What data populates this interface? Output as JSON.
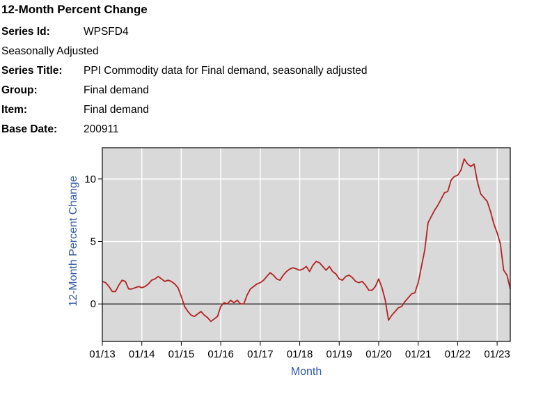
{
  "header": {
    "title": "12-Month Percent Change",
    "series_id_label": "Series Id:",
    "series_id_value": "WPSFD4",
    "seasonal": "Seasonally Adjusted",
    "series_title_label": "Series Title:",
    "series_title_value": "PPI Commodity data for Final demand, seasonally adjusted",
    "group_label": "Group:",
    "group_value": "Final demand",
    "item_label": "Item:",
    "item_value": "Final demand",
    "base_date_label": "Base Date:",
    "base_date_value": "200911"
  },
  "colors": {
    "line": "#b22222",
    "plot_bg": "#d9d9d9",
    "axis_title": "#2e5aa8",
    "grid": "#ffffff"
  },
  "chart_data": {
    "type": "line",
    "xlabel": "Month",
    "ylabel": "12-Month Percent Change",
    "x_tick_labels": [
      "01/13",
      "01/14",
      "01/15",
      "01/16",
      "01/17",
      "01/18",
      "01/19",
      "01/20",
      "01/21",
      "01/22",
      "01/23"
    ],
    "y_tick_labels": [
      "0",
      "5",
      "10"
    ],
    "ylim": [
      -3,
      12.5
    ],
    "xlim": [
      "2013-01",
      "2023-05"
    ],
    "grid": true,
    "series": [
      {
        "points": [
          [
            "2013-01",
            1.8
          ],
          [
            "2013-02",
            1.7
          ],
          [
            "2013-03",
            1.4
          ],
          [
            "2013-04",
            1.0
          ],
          [
            "2013-05",
            1.0
          ],
          [
            "2013-06",
            1.5
          ],
          [
            "2013-07",
            1.9
          ],
          [
            "2013-08",
            1.8
          ],
          [
            "2013-09",
            1.2
          ],
          [
            "2013-10",
            1.2
          ],
          [
            "2013-11",
            1.3
          ],
          [
            "2013-12",
            1.4
          ],
          [
            "2014-01",
            1.3
          ],
          [
            "2014-02",
            1.4
          ],
          [
            "2014-03",
            1.6
          ],
          [
            "2014-04",
            1.9
          ],
          [
            "2014-05",
            2.0
          ],
          [
            "2014-06",
            2.2
          ],
          [
            "2014-07",
            2.0
          ],
          [
            "2014-08",
            1.8
          ],
          [
            "2014-09",
            1.9
          ],
          [
            "2014-10",
            1.8
          ],
          [
            "2014-11",
            1.6
          ],
          [
            "2014-12",
            1.3
          ],
          [
            "2015-01",
            0.6
          ],
          [
            "2015-02",
            -0.2
          ],
          [
            "2015-03",
            -0.6
          ],
          [
            "2015-04",
            -0.9
          ],
          [
            "2015-05",
            -1.0
          ],
          [
            "2015-06",
            -0.8
          ],
          [
            "2015-07",
            -0.6
          ],
          [
            "2015-08",
            -0.9
          ],
          [
            "2015-09",
            -1.1
          ],
          [
            "2015-10",
            -1.4
          ],
          [
            "2015-11",
            -1.2
          ],
          [
            "2015-12",
            -1.0
          ],
          [
            "2016-01",
            -0.2
          ],
          [
            "2016-02",
            0.1
          ],
          [
            "2016-03",
            0.0
          ],
          [
            "2016-04",
            0.3
          ],
          [
            "2016-05",
            0.1
          ],
          [
            "2016-06",
            0.3
          ],
          [
            "2016-07",
            0.0
          ],
          [
            "2016-08",
            0.0
          ],
          [
            "2016-09",
            0.7
          ],
          [
            "2016-10",
            1.2
          ],
          [
            "2016-11",
            1.4
          ],
          [
            "2016-12",
            1.6
          ],
          [
            "2017-01",
            1.7
          ],
          [
            "2017-02",
            1.9
          ],
          [
            "2017-03",
            2.2
          ],
          [
            "2017-04",
            2.5
          ],
          [
            "2017-05",
            2.3
          ],
          [
            "2017-06",
            2.0
          ],
          [
            "2017-07",
            1.9
          ],
          [
            "2017-08",
            2.3
          ],
          [
            "2017-09",
            2.6
          ],
          [
            "2017-10",
            2.8
          ],
          [
            "2017-11",
            2.9
          ],
          [
            "2017-12",
            2.8
          ],
          [
            "2018-01",
            2.7
          ],
          [
            "2018-02",
            2.8
          ],
          [
            "2018-03",
            3.0
          ],
          [
            "2018-04",
            2.6
          ],
          [
            "2018-05",
            3.1
          ],
          [
            "2018-06",
            3.4
          ],
          [
            "2018-07",
            3.3
          ],
          [
            "2018-08",
            3.0
          ],
          [
            "2018-09",
            2.7
          ],
          [
            "2018-10",
            3.0
          ],
          [
            "2018-11",
            2.6
          ],
          [
            "2018-12",
            2.4
          ],
          [
            "2019-01",
            2.0
          ],
          [
            "2019-02",
            1.9
          ],
          [
            "2019-03",
            2.2
          ],
          [
            "2019-04",
            2.3
          ],
          [
            "2019-05",
            2.1
          ],
          [
            "2019-06",
            1.8
          ],
          [
            "2019-07",
            1.7
          ],
          [
            "2019-08",
            1.8
          ],
          [
            "2019-09",
            1.5
          ],
          [
            "2019-10",
            1.1
          ],
          [
            "2019-11",
            1.1
          ],
          [
            "2019-12",
            1.4
          ],
          [
            "2020-01",
            2.0
          ],
          [
            "2020-02",
            1.3
          ],
          [
            "2020-03",
            0.3
          ],
          [
            "2020-04",
            -1.3
          ],
          [
            "2020-05",
            -0.9
          ],
          [
            "2020-06",
            -0.6
          ],
          [
            "2020-07",
            -0.3
          ],
          [
            "2020-08",
            -0.2
          ],
          [
            "2020-09",
            0.2
          ],
          [
            "2020-10",
            0.5
          ],
          [
            "2020-11",
            0.8
          ],
          [
            "2020-12",
            0.9
          ],
          [
            "2021-01",
            1.7
          ],
          [
            "2021-02",
            3.0
          ],
          [
            "2021-03",
            4.3
          ],
          [
            "2021-04",
            6.5
          ],
          [
            "2021-05",
            7.0
          ],
          [
            "2021-06",
            7.5
          ],
          [
            "2021-07",
            7.9
          ],
          [
            "2021-08",
            8.4
          ],
          [
            "2021-09",
            8.9
          ],
          [
            "2021-10",
            9.0
          ],
          [
            "2021-11",
            9.9
          ],
          [
            "2021-12",
            10.2
          ],
          [
            "2022-01",
            10.3
          ],
          [
            "2022-02",
            10.7
          ],
          [
            "2022-03",
            11.6
          ],
          [
            "2022-04",
            11.2
          ],
          [
            "2022-05",
            11.0
          ],
          [
            "2022-06",
            11.2
          ],
          [
            "2022-07",
            9.8
          ],
          [
            "2022-08",
            8.8
          ],
          [
            "2022-09",
            8.5
          ],
          [
            "2022-10",
            8.2
          ],
          [
            "2022-11",
            7.4
          ],
          [
            "2022-12",
            6.4
          ],
          [
            "2023-01",
            5.7
          ],
          [
            "2023-02",
            4.8
          ],
          [
            "2023-03",
            2.7
          ],
          [
            "2023-04",
            2.3
          ],
          [
            "2023-05",
            1.2
          ]
        ]
      }
    ]
  }
}
